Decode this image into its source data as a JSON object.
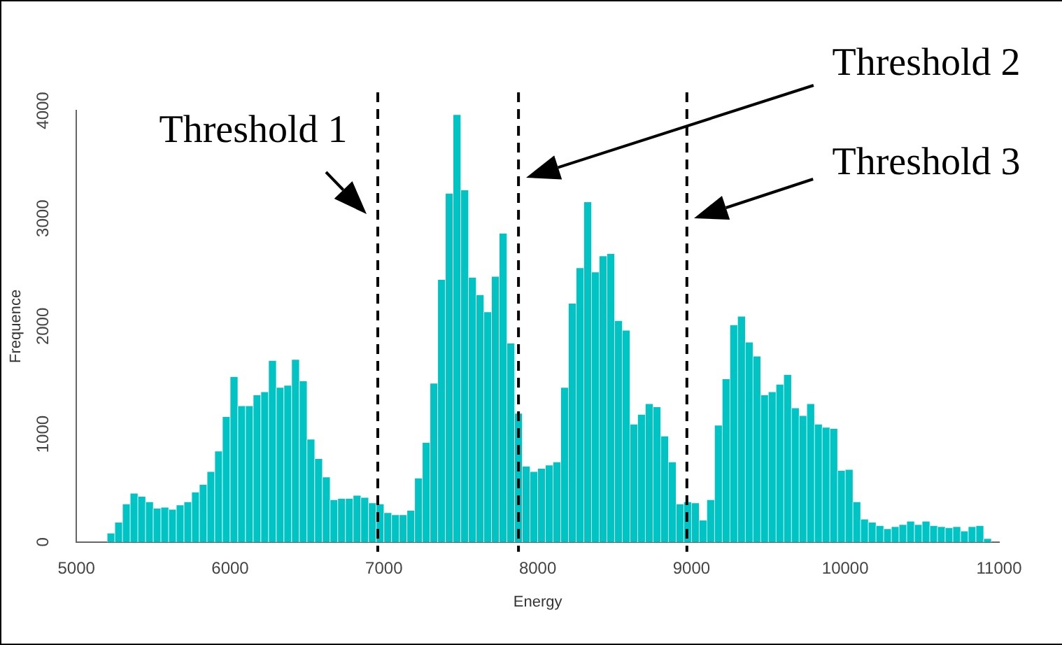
{
  "chart_data": {
    "type": "histogram",
    "xlabel": "Energy",
    "ylabel": "Frequence",
    "bins": [
      5200,
      5250,
      5300,
      5350,
      5400,
      5450,
      5500,
      5550,
      5600,
      5650,
      5700,
      5750,
      5800,
      5850,
      5900,
      5950,
      6000,
      6050,
      6100,
      6150,
      6200,
      6250,
      6300,
      6350,
      6400,
      6450,
      6500,
      6550,
      6600,
      6650,
      6700,
      6750,
      6800,
      6850,
      6900,
      6950,
      7000,
      7050,
      7100,
      7150,
      7200,
      7250,
      7300,
      7350,
      7400,
      7450,
      7500,
      7550,
      7600,
      7650,
      7700,
      7750,
      7800,
      7850,
      7900,
      7950,
      8000,
      8050,
      8100,
      8150,
      8200,
      8250,
      8300,
      8350,
      8400,
      8450,
      8500,
      8550,
      8600,
      8650,
      8700,
      8750,
      8800,
      8850,
      8900,
      8950,
      9000,
      9050,
      9100,
      9150,
      9200,
      9250,
      9300,
      9350,
      9400,
      9450,
      9500,
      9550,
      9600,
      9650,
      9700,
      9750,
      9800,
      9850,
      9900,
      9950,
      10000,
      10050,
      10100,
      10150,
      10200,
      10250,
      10300,
      10350,
      10400,
      10450,
      10500,
      10550,
      10600,
      10650,
      10700,
      10750,
      10800,
      10850,
      10900,
      10950
    ],
    "values": [
      80,
      180,
      350,
      450,
      420,
      370,
      310,
      320,
      300,
      340,
      370,
      460,
      530,
      650,
      840,
      1160,
      1530,
      1260,
      1260,
      1360,
      1390,
      1680,
      1430,
      1450,
      1690,
      1490,
      950,
      770,
      600,
      390,
      400,
      400,
      430,
      410,
      360,
      350,
      270,
      250,
      250,
      290,
      590,
      920,
      1470,
      2430,
      3230,
      3960,
      3260,
      2450,
      2290,
      2130,
      2460,
      2860,
      1840,
      1190,
      700,
      650,
      680,
      710,
      740,
      1430,
      2210,
      2540,
      3150,
      2500,
      2650,
      2670,
      2050,
      1960,
      1090,
      1180,
      1280,
      1250,
      980,
      740,
      350,
      370,
      360,
      200,
      390,
      1080,
      1510,
      2010,
      2090,
      1850,
      1720,
      1360,
      1390,
      1460,
      1550,
      1240,
      1170,
      1280,
      1090,
      1060,
      1050,
      660,
      670,
      370,
      210,
      180,
      150,
      120,
      140,
      160,
      190,
      160,
      190,
      150,
      140,
      130,
      140,
      100,
      140,
      150,
      30
    ],
    "color": "#00c4c4",
    "xlim": [
      5000,
      11000
    ],
    "xticks": [
      5000,
      6000,
      7000,
      8000,
      9000,
      10000,
      11000
    ],
    "ylim": [
      0,
      4000
    ],
    "yticks": [
      0,
      1000,
      2000,
      3000,
      4000
    ],
    "grid": false,
    "legend": false,
    "annotations": [
      "Threshold 1",
      "Threshold 2",
      "Threshold 3"
    ],
    "ref_lines": [
      {
        "axis": "x",
        "value": 6960,
        "color": "#000000",
        "line_style": "dashed"
      },
      {
        "axis": "x",
        "value": 7875,
        "color": "#000000",
        "line_style": "dashed"
      },
      {
        "axis": "x",
        "value": 8970,
        "color": "#000000",
        "line_style": "dashed"
      }
    ]
  }
}
